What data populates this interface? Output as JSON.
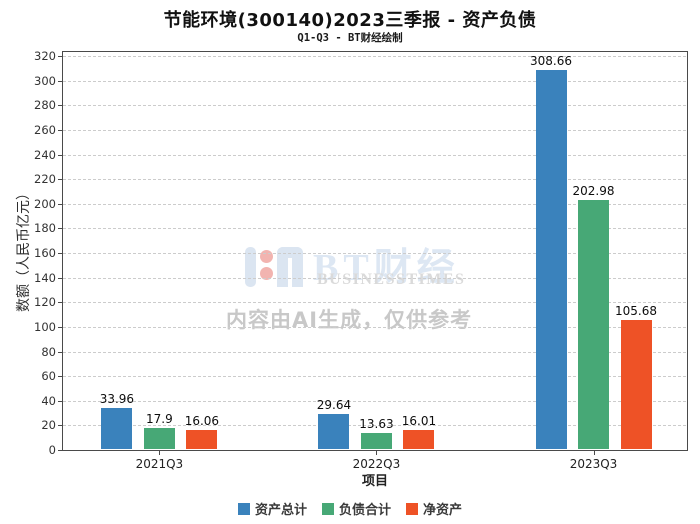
{
  "chart_data": {
    "type": "bar",
    "title": "节能环境(300140)2023三季报 - 资产负债",
    "subtitle": "Q1-Q3 - BT财经绘制",
    "categories": [
      "2021Q3",
      "2022Q3",
      "2023Q3"
    ],
    "series": [
      {
        "name": "资产总计",
        "color": "#3a82bc",
        "values": [
          33.96,
          29.64,
          308.66
        ]
      },
      {
        "name": "负债合计",
        "color": "#47a876",
        "values": [
          17.9,
          13.63,
          202.98
        ]
      },
      {
        "name": "净资产",
        "color": "#ee5226",
        "values": [
          16.06,
          16.01,
          105.68
        ]
      }
    ],
    "xlabel": "项目",
    "ylabel": "数额（人民币亿元）",
    "ylim": [
      0,
      320
    ],
    "ytick_step": 20,
    "grid": true,
    "grid_style": "dashed",
    "legend_position": "bottom",
    "bar_labels": true
  },
  "watermark": {
    "brand": "BT财经",
    "brand_sub": "BUSINESSTIMES",
    "disclaimer": "内容由AI生成，仅供参考"
  }
}
